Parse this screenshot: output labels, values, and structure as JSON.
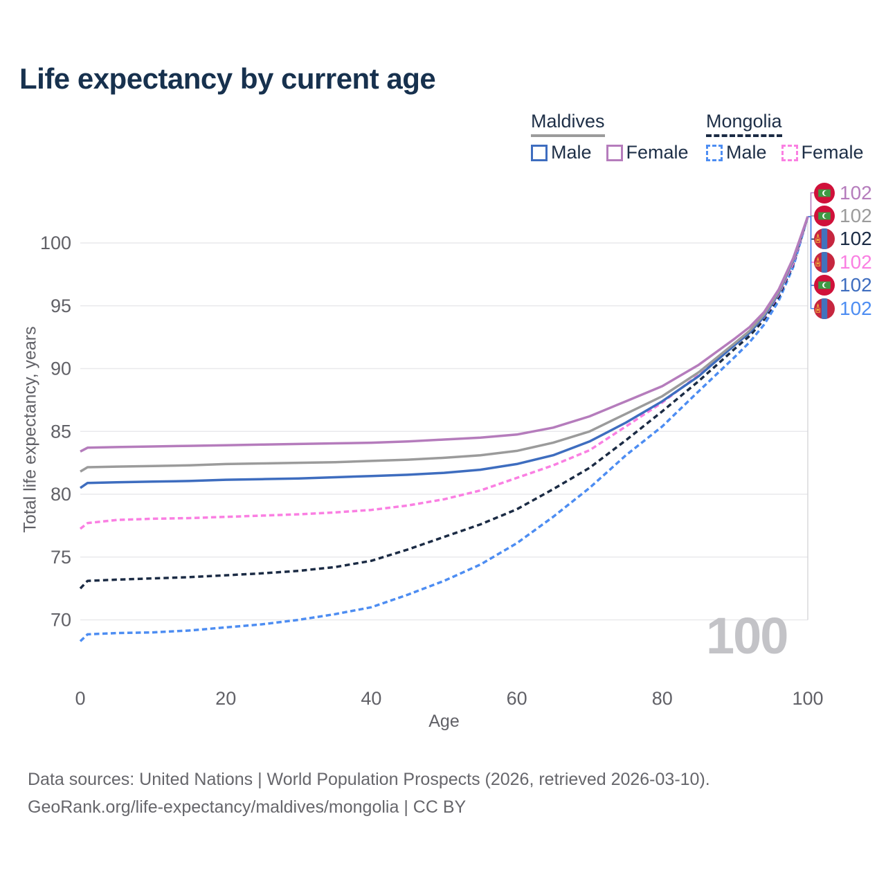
{
  "title": "Life expectancy by current age",
  "colors": {
    "title_text": "#17314e",
    "legend_text": "#1e2f47",
    "tick_text": "#616167",
    "axis_label_text": "#616167",
    "footer_text": "#66666b",
    "gridline": "#e9e9ec",
    "hover_line": "#d8d8dc",
    "watermark": "#c3c3c7"
  },
  "legend": {
    "groups": [
      {
        "country": "Maldives",
        "line_style": "solid",
        "line_color": "#9b9b9b",
        "items": [
          {
            "label": "Male",
            "color": "#3e6dbf"
          },
          {
            "label": "Female",
            "color": "#b57cbc"
          }
        ]
      },
      {
        "country": "Mongolia",
        "line_style": "dashed",
        "line_color": "#1b2b44",
        "items": [
          {
            "label": "Male",
            "color": "#4d8df2"
          },
          {
            "label": "Female",
            "color": "#fa7fe2"
          }
        ]
      }
    ]
  },
  "hover": {
    "age_label": "100"
  },
  "chart_data": {
    "type": "line",
    "title": "Life expectancy by current age",
    "xlabel": "Age",
    "ylabel": "Total life expectancy, years",
    "x_ticks": [
      0,
      20,
      40,
      60,
      80,
      100
    ],
    "y_ticks": [
      70,
      75,
      80,
      85,
      90,
      95,
      100
    ],
    "xlim": [
      0,
      100
    ],
    "ylim": [
      68,
      102.5
    ],
    "grid": "horizontal-only",
    "legend_position": "top-right",
    "hover_age": 100,
    "x": [
      0,
      1,
      5,
      10,
      15,
      20,
      25,
      30,
      35,
      40,
      45,
      50,
      55,
      60,
      65,
      70,
      75,
      80,
      85,
      90,
      92,
      94,
      96,
      98,
      100
    ],
    "series": [
      {
        "name": "Maldives Female",
        "slug": "maldives-female",
        "country": "Maldives",
        "sex": "Female",
        "flag": "maldives",
        "line_style": "solid",
        "color": "#b57cbc",
        "end_label": "102",
        "values": [
          83.4,
          83.7,
          83.75,
          83.8,
          83.85,
          83.9,
          83.95,
          84.0,
          84.05,
          84.1,
          84.2,
          84.35,
          84.5,
          84.75,
          85.3,
          86.2,
          87.4,
          88.6,
          90.3,
          92.4,
          93.3,
          94.5,
          96.3,
          98.8,
          102.1
        ]
      },
      {
        "name": "Maldives",
        "slug": "maldives-total",
        "country": "Maldives",
        "sex": "Both",
        "flag": "maldives",
        "line_style": "solid",
        "color": "#9b9b9b",
        "end_label": "102",
        "values": [
          81.8,
          82.15,
          82.2,
          82.25,
          82.3,
          82.4,
          82.45,
          82.5,
          82.55,
          82.65,
          82.75,
          82.9,
          83.1,
          83.45,
          84.1,
          85.0,
          86.4,
          87.8,
          89.7,
          92.05,
          93.0,
          94.3,
          96.1,
          98.7,
          102.1
        ]
      },
      {
        "name": "Mongolia",
        "slug": "mongolia-total",
        "country": "Mongolia",
        "sex": "Both",
        "flag": "mongolia",
        "line_style": "dashed",
        "color": "#1b2b44",
        "end_label": "102",
        "values": [
          72.5,
          73.1,
          73.2,
          73.3,
          73.4,
          73.55,
          73.7,
          73.9,
          74.2,
          74.7,
          75.6,
          76.6,
          77.6,
          78.8,
          80.4,
          82.1,
          84.3,
          86.6,
          89.0,
          91.6,
          92.6,
          93.9,
          95.7,
          98.3,
          102.1
        ]
      },
      {
        "name": "Mongolia Female",
        "slug": "mongolia-female",
        "country": "Mongolia",
        "sex": "Female",
        "flag": "mongolia",
        "line_style": "dashed",
        "color": "#fa7fe2",
        "end_label": "102",
        "values": [
          77.25,
          77.7,
          77.95,
          78.05,
          78.1,
          78.2,
          78.3,
          78.4,
          78.55,
          78.75,
          79.1,
          79.6,
          80.3,
          81.3,
          82.3,
          83.5,
          85.4,
          87.3,
          89.5,
          91.9,
          92.9,
          94.1,
          95.9,
          98.4,
          102.1
        ]
      },
      {
        "name": "Maldives Male",
        "slug": "maldives-male",
        "country": "Maldives",
        "sex": "Male",
        "flag": "maldives",
        "line_style": "solid",
        "color": "#3e6dbf",
        "end_label": "102",
        "values": [
          80.5,
          80.9,
          80.95,
          81.0,
          81.05,
          81.15,
          81.2,
          81.25,
          81.35,
          81.45,
          81.55,
          81.7,
          81.95,
          82.4,
          83.1,
          84.2,
          85.7,
          87.4,
          89.4,
          91.9,
          92.85,
          94.15,
          96.0,
          98.6,
          102.1
        ]
      },
      {
        "name": "Mongolia Male",
        "slug": "mongolia-male",
        "country": "Mongolia",
        "sex": "Male",
        "flag": "mongolia",
        "line_style": "dashed",
        "color": "#4d8df2",
        "end_label": "102",
        "values": [
          68.3,
          68.85,
          68.95,
          69.0,
          69.15,
          69.4,
          69.65,
          70.0,
          70.45,
          71.0,
          72.0,
          73.1,
          74.4,
          76.1,
          78.2,
          80.5,
          83.1,
          85.4,
          88.2,
          90.95,
          92.1,
          93.5,
          95.4,
          98.1,
          102.1
        ]
      }
    ]
  },
  "footer": {
    "line1": "Data sources: United Nations | World Population Prospects (2026, retrieved 2026-03-10).",
    "line2": "GeoRank.org/life-expectancy/maldives/mongolia | CC BY"
  }
}
